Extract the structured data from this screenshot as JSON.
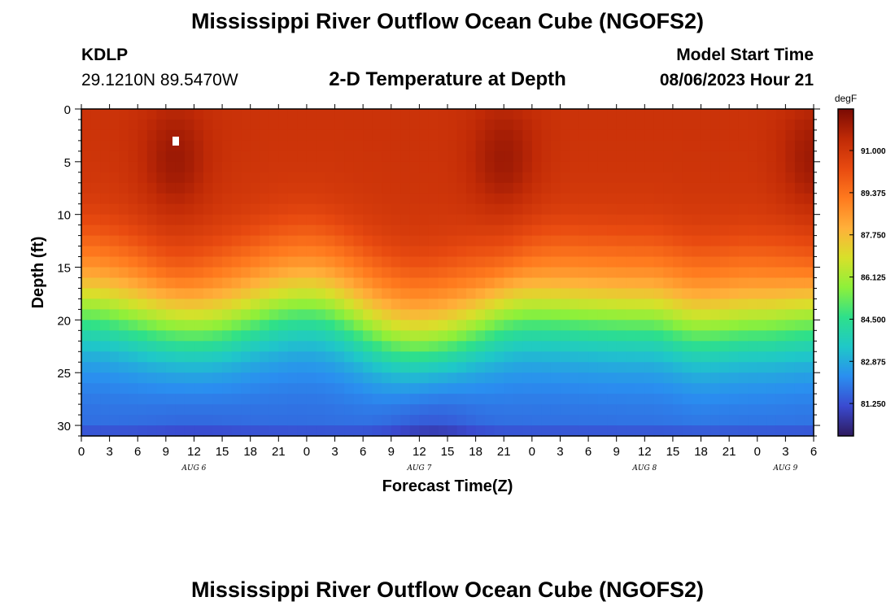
{
  "header": {
    "title": "Mississippi River Outflow Ocean Cube (NGOFS2)",
    "station": "KDLP",
    "coords": "29.1210N  89.5470W",
    "subtitle": "2-D Temperature at Depth",
    "model_start_label": "Model Start Time",
    "model_start_value": "08/06/2023 Hour 21"
  },
  "footer": {
    "title": "Mississippi River Outflow Ocean Cube (NGOFS2)"
  },
  "colors": {
    "colormap": [
      "#2e1a5e",
      "#3a4ad0",
      "#2a8ef0",
      "#1fc8c8",
      "#2ee08a",
      "#8ef03a",
      "#d8e02a",
      "#ffb03a",
      "#ff7a1e",
      "#e84a10",
      "#c02a06",
      "#7a0a04"
    ]
  },
  "chart_data": {
    "type": "heatmap",
    "title": "2-D Temperature at Depth",
    "xlabel": "Forecast Time(Z)",
    "ylabel": "Depth (ft)",
    "xlim": [
      0,
      78
    ],
    "ylim": [
      31,
      0
    ],
    "x_tick_labels": [
      "0",
      "3",
      "6",
      "9",
      "12",
      "15",
      "18",
      "21",
      "0",
      "3",
      "6",
      "9",
      "12",
      "15",
      "18",
      "21",
      "0",
      "3",
      "6",
      "9",
      "12",
      "15",
      "18",
      "21",
      "0",
      "3",
      "6"
    ],
    "y_ticks": [
      0,
      5,
      10,
      15,
      20,
      25,
      30
    ],
    "date_labels": [
      {
        "label": "AUG 6",
        "x": 12
      },
      {
        "label": "AUG 7",
        "x": 36
      },
      {
        "label": "AUG 8",
        "x": 60
      },
      {
        "label": "AUG 9",
        "x": 75
      }
    ],
    "colorbar": {
      "unit": "degF",
      "ticks": [
        "91.000",
        "89.375",
        "87.750",
        "86.125",
        "84.500",
        "82.875",
        "81.250"
      ],
      "range": [
        80.0,
        92.6
      ]
    },
    "surface_peaks_hours": [
      10,
      45,
      78
    ],
    "thermocline_depth_ft": [
      [
        0,
        18.2
      ],
      [
        12,
        20.2
      ],
      [
        24,
        17.8
      ],
      [
        36,
        21.8
      ],
      [
        48,
        18.6
      ],
      [
        60,
        19.0
      ],
      [
        66,
        20.0
      ],
      [
        72,
        19.6
      ],
      [
        78,
        19.2
      ]
    ],
    "near_bottom_min_degF": 80.3
  }
}
